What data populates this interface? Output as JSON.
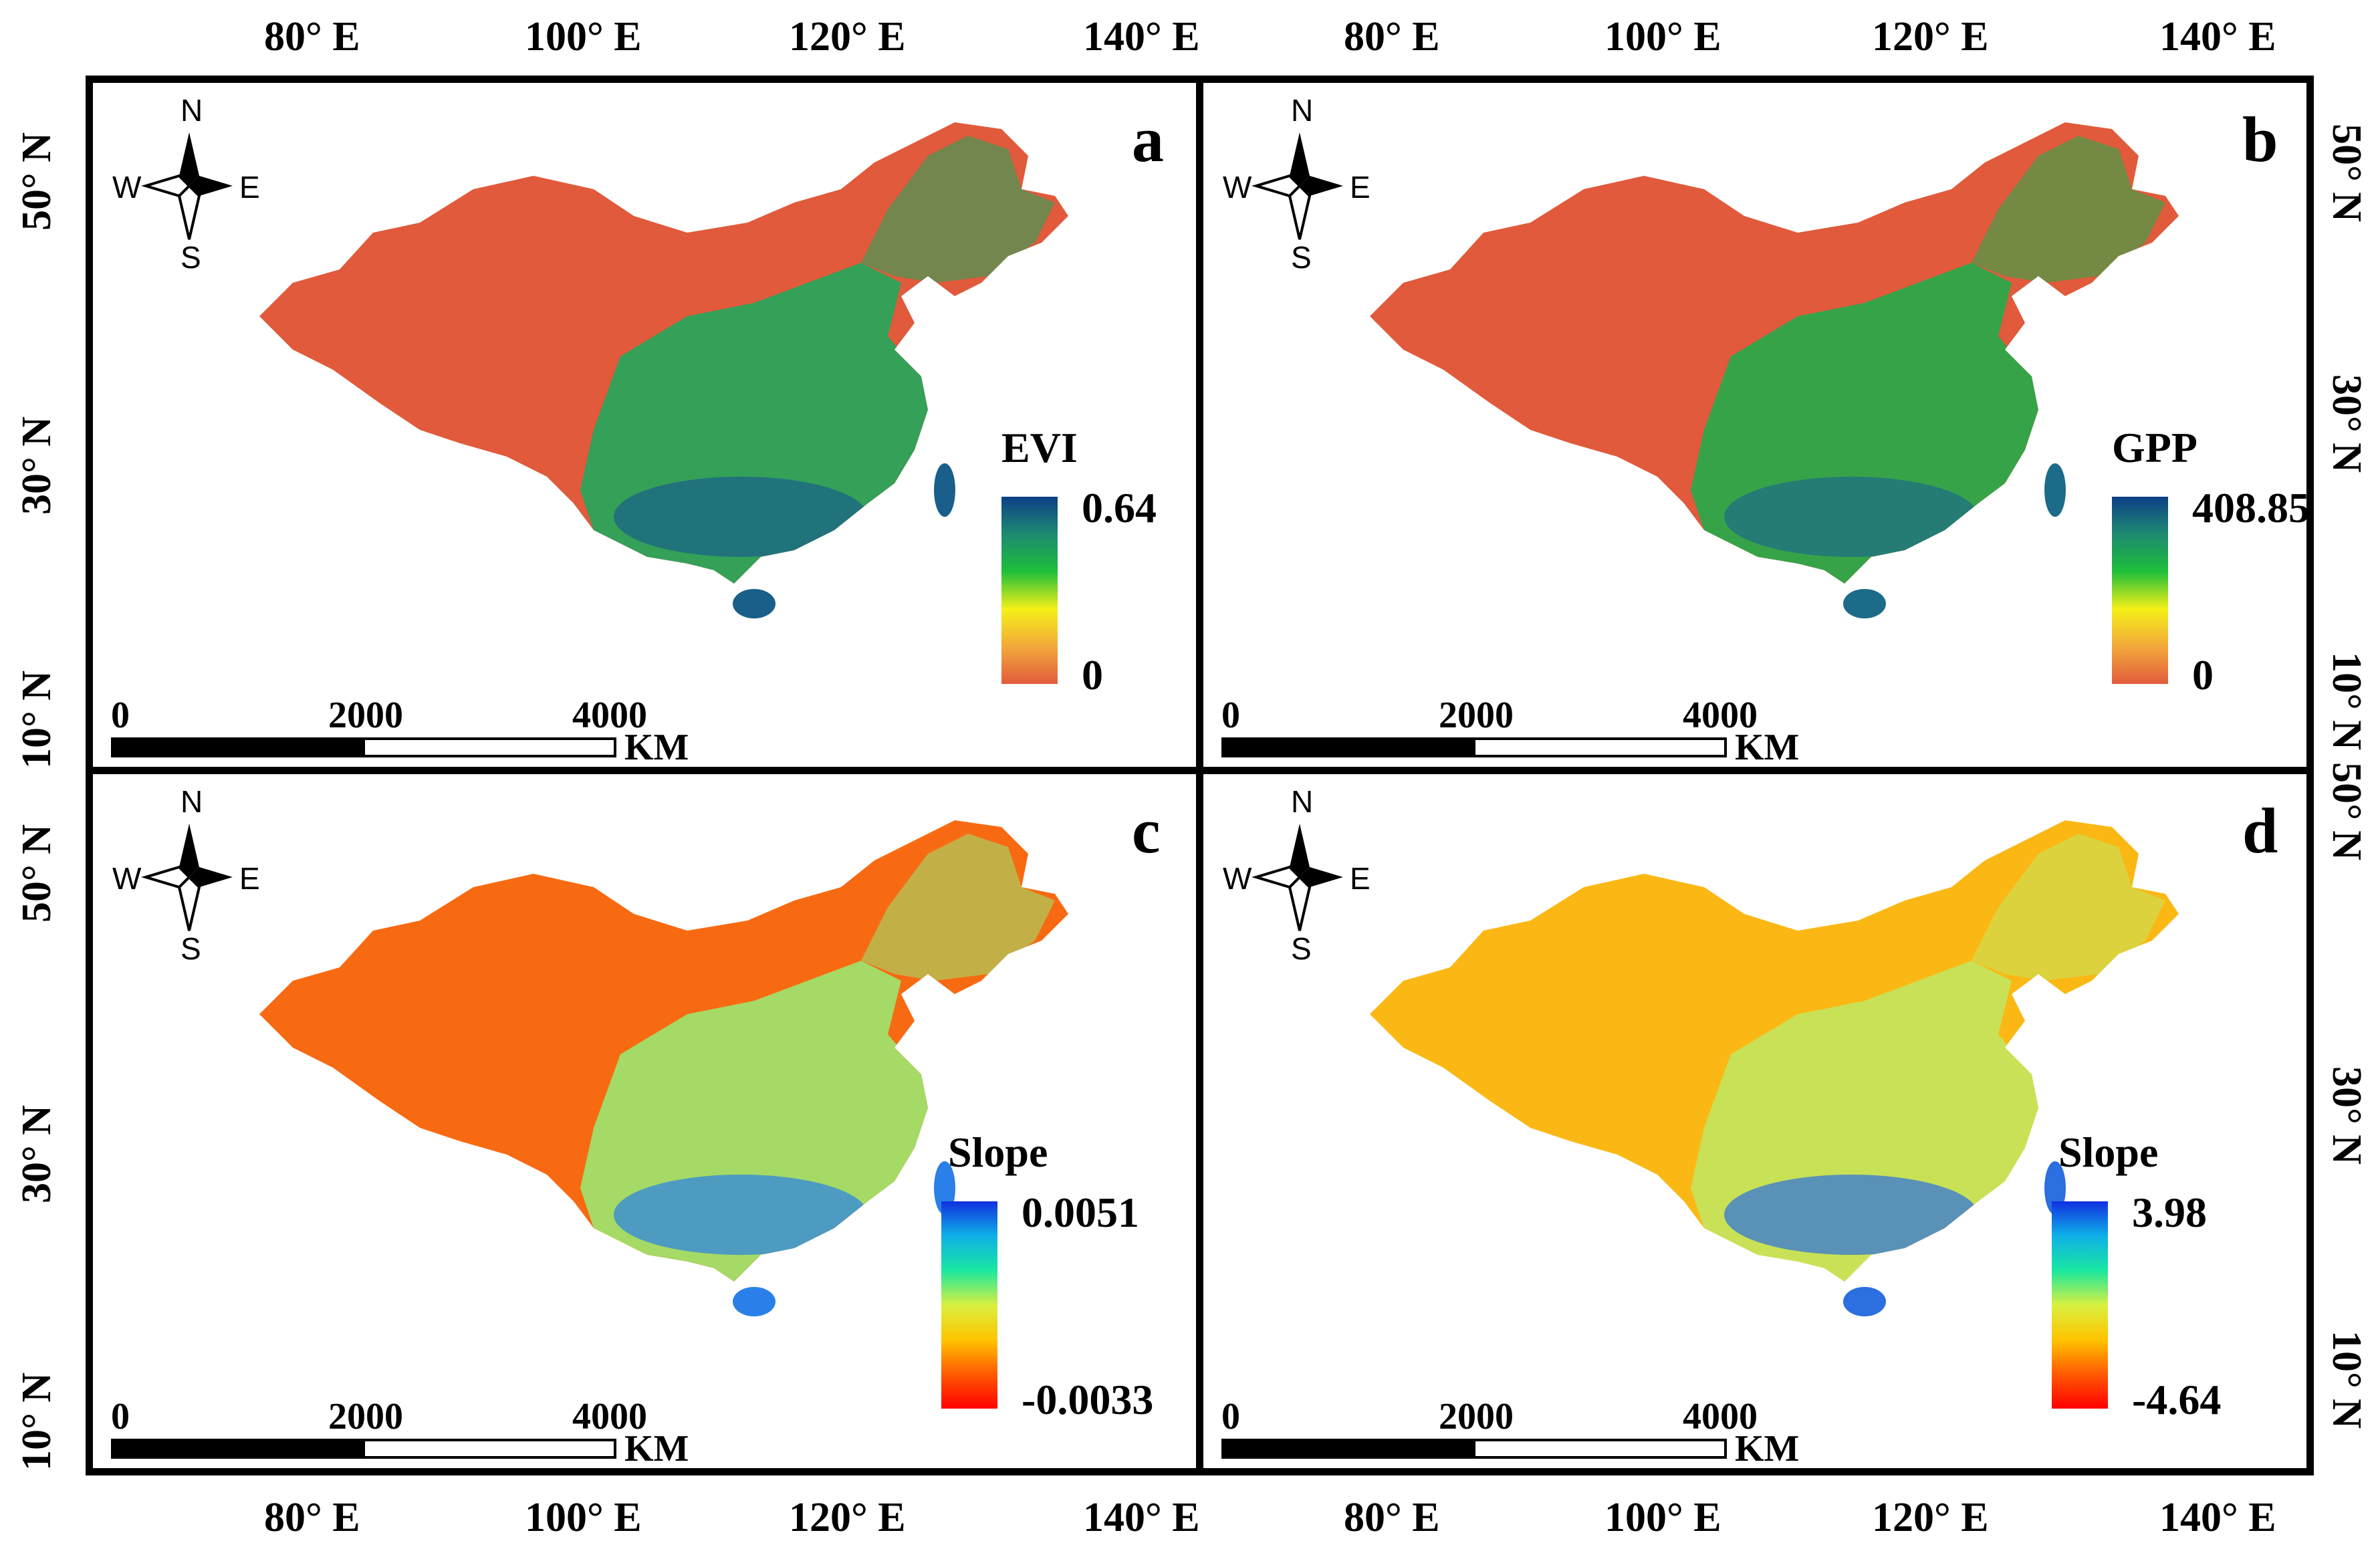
{
  "axes": {
    "top_lon_labels_left": [
      "80° E",
      "100° E",
      "120° E",
      "140° E"
    ],
    "top_lon_labels_right": [
      "80° E",
      "100° E",
      "120° E",
      "140° E"
    ],
    "bottom_lon_labels_left": [
      "80° E",
      "100° E",
      "120° E",
      "140° E"
    ],
    "bottom_lon_labels_right": [
      "80° E",
      "100° E",
      "120° E",
      "140° E"
    ],
    "left_lat_labels_top": [
      "50° N",
      "30° N",
      "10° N"
    ],
    "left_lat_labels_bottom": [
      "50° N",
      "30° N",
      "10° N"
    ],
    "right_lat_labels_top": [
      "50° N",
      "30° N",
      "10° N"
    ],
    "right_lat_labels_bottom": [
      "50° N",
      "30° N",
      "10° N"
    ]
  },
  "compass": {
    "n": "N",
    "s": "S",
    "e": "E",
    "w": "W"
  },
  "scale": {
    "t0": "0",
    "t1": "2000",
    "t2": "4000",
    "unit": "KM"
  },
  "panels": [
    {
      "letter": "a",
      "legend_title": "EVI",
      "max": "0.64",
      "min": "0",
      "colors": [
        "#0d3f86",
        "#1e8a72",
        "#1fbf3a",
        "#f5f018",
        "#f2a93b",
        "#e25b3c"
      ],
      "west": "#e05a3b",
      "east": "#2aa45a",
      "coast": "#1a5f8a"
    },
    {
      "letter": "b",
      "legend_title": "GPP",
      "max": "408.85",
      "min": "0",
      "colors": [
        "#0d3f86",
        "#1e8a72",
        "#1fbf3a",
        "#f5f018",
        "#f2a93b",
        "#e25b3c"
      ],
      "west": "#e05a3b",
      "east": "#2ca84a",
      "coast": "#1c6b88"
    },
    {
      "letter": "c",
      "legend_title": "Slope",
      "max": "0.0051",
      "min": "-0.0033",
      "colors": [
        "#1030e0",
        "#0fb0e8",
        "#18e8a0",
        "#d8f040",
        "#ffc400",
        "#ff5a00",
        "#ff0000"
      ],
      "west": "#f86a12",
      "east": "#9fe06a",
      "coast": "#2a80e8"
    },
    {
      "letter": "d",
      "legend_title": "Slope",
      "max": "3.98",
      "min": "-4.64",
      "colors": [
        "#1030e0",
        "#0fb0e8",
        "#18e8a0",
        "#d8f040",
        "#ffc400",
        "#ff5a00",
        "#ff0000"
      ],
      "west": "#fbb814",
      "east": "#c6e35a",
      "coast": "#2b6fe0"
    }
  ]
}
